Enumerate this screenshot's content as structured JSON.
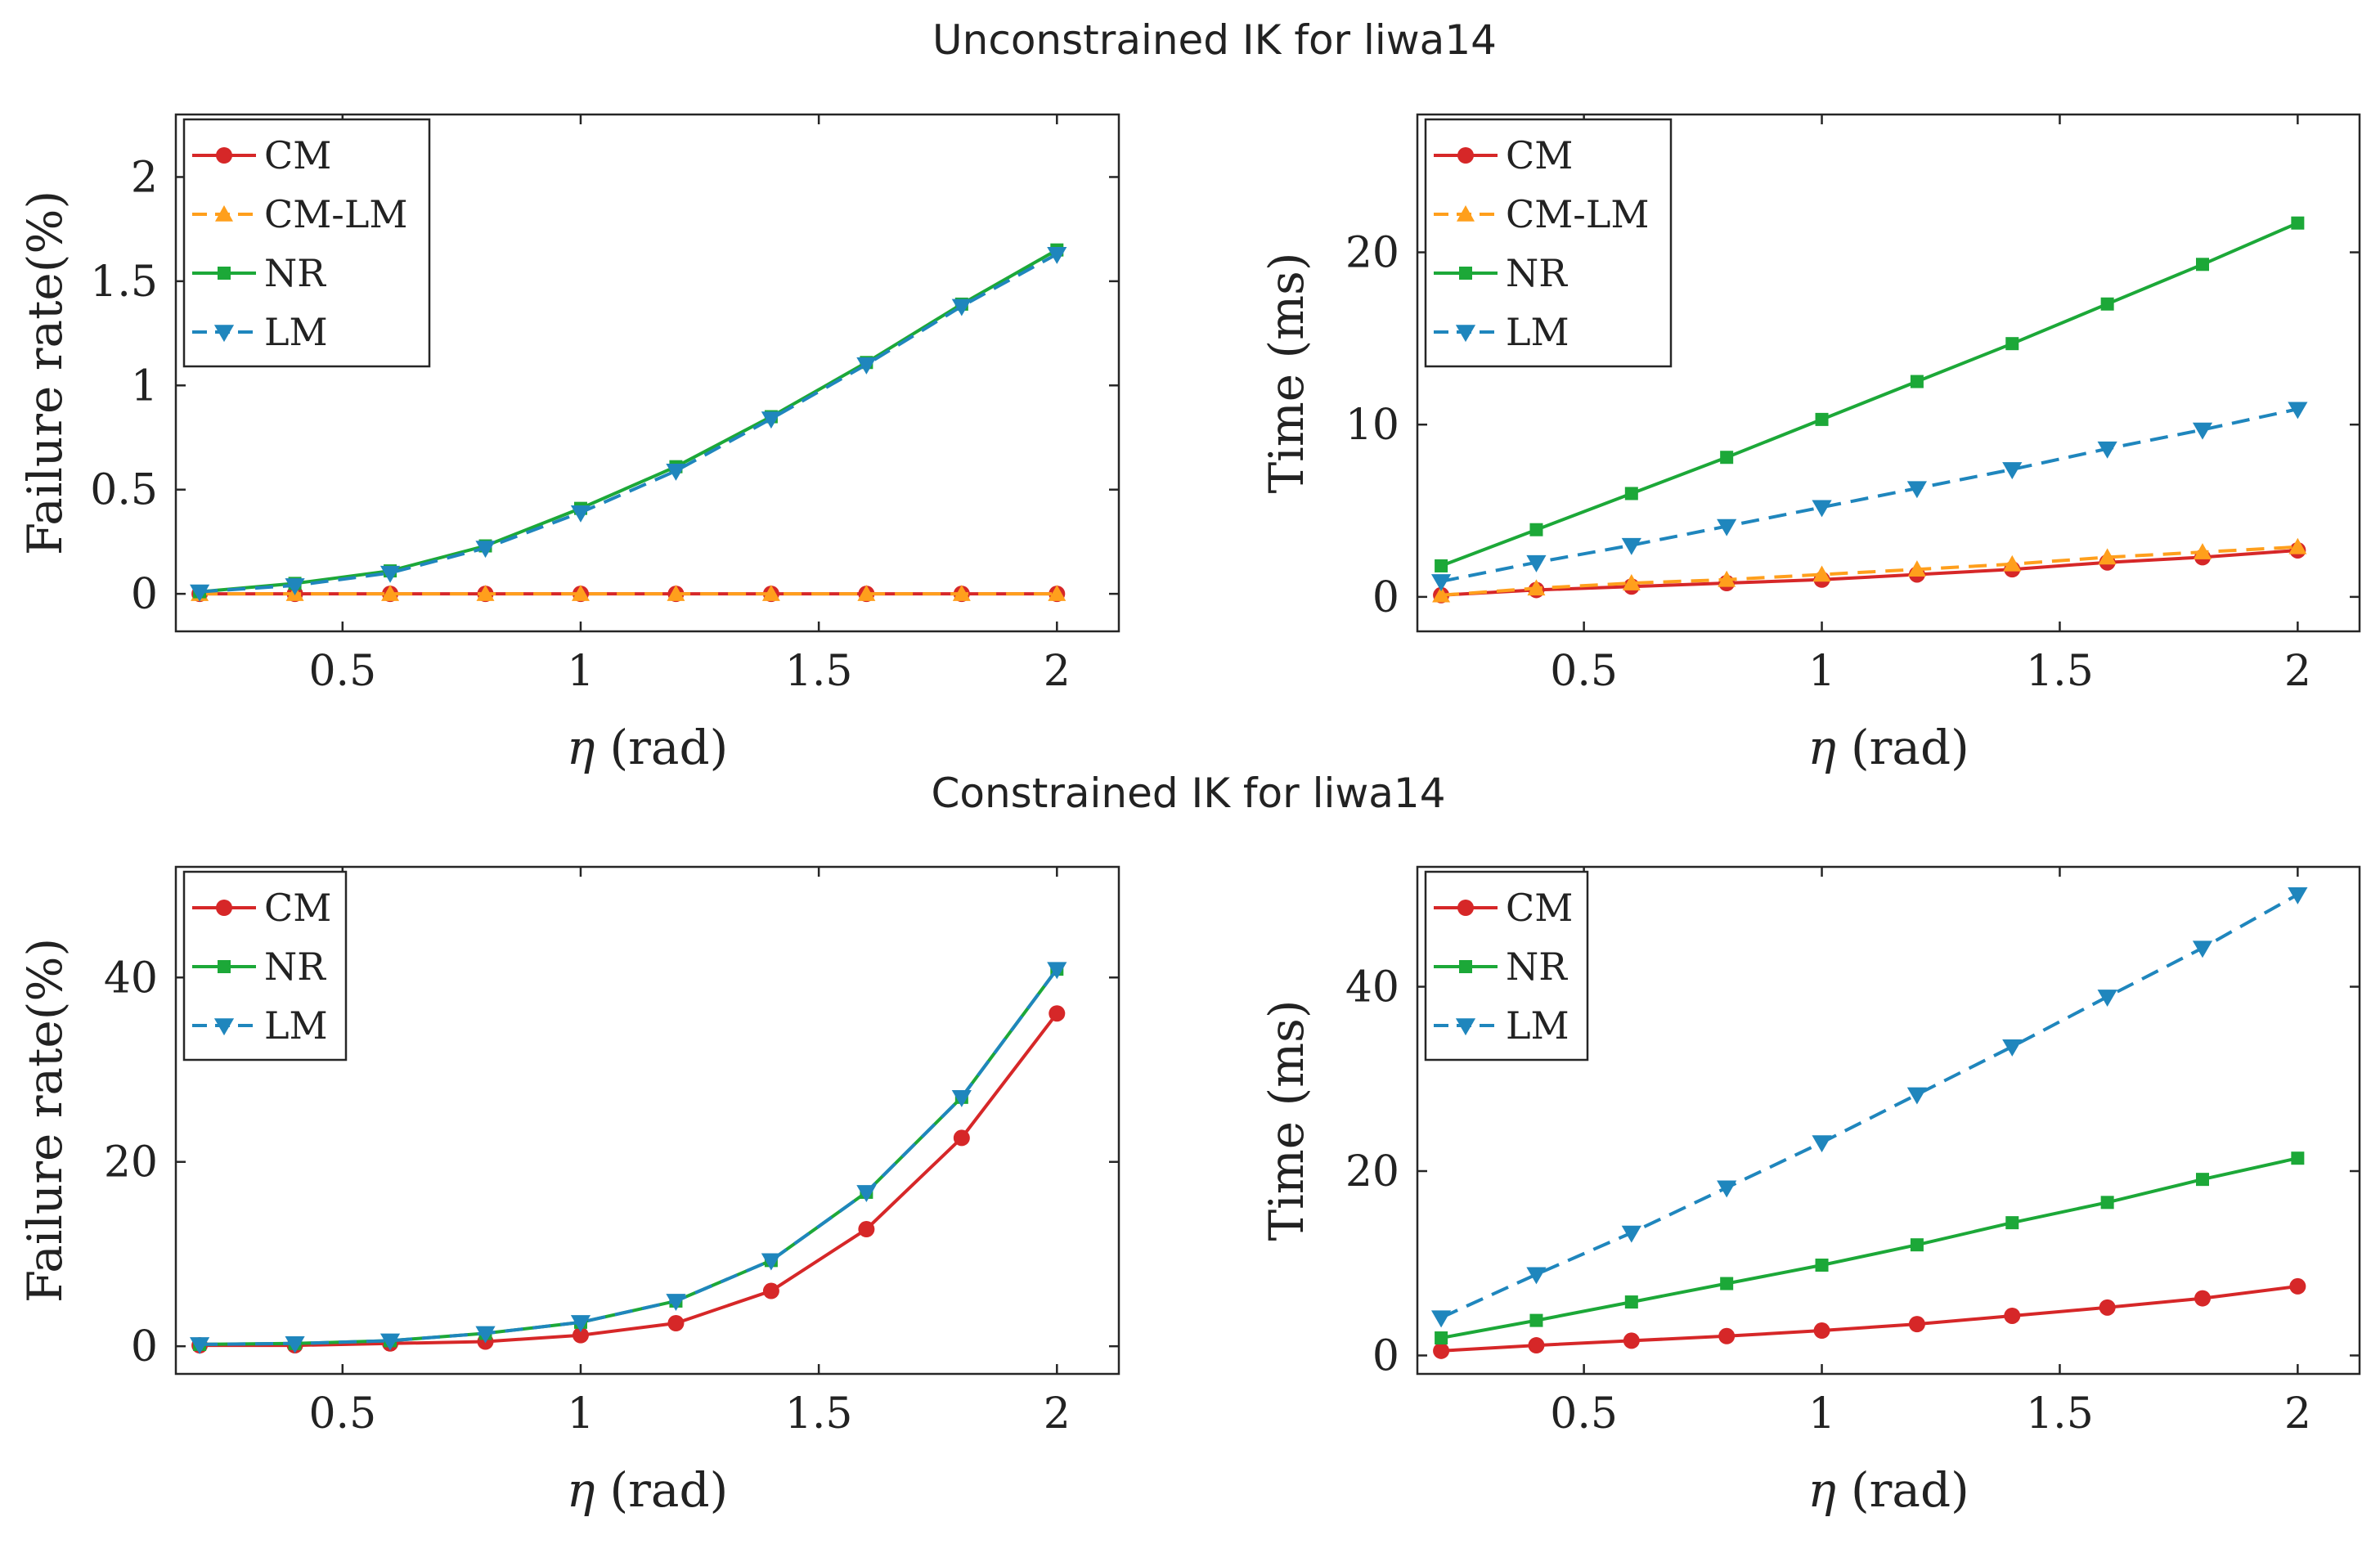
{
  "sections": [
    {
      "title": "Unconstrained IK for liwa14"
    },
    {
      "title": "Constrained IK for liwa14"
    }
  ],
  "colors": {
    "CM": "#d62728",
    "CM-LM": "#ff9f1c",
    "NR": "#1ca838",
    "LM": "#1f86bd"
  },
  "chart_data": [
    {
      "type": "line",
      "title": "Unconstrained IK for liwa14",
      "xlabel_symbol": "η",
      "xlabel_unit": "(rad)",
      "ylabel": "Failure rate(%)",
      "xlim": [
        0.15,
        2.13
      ],
      "ylim": [
        -0.18,
        2.3
      ],
      "xticks": [
        0.5,
        1,
        1.5,
        2
      ],
      "yticks": [
        0,
        0.5,
        1,
        1.5,
        2
      ],
      "x": [
        0.2,
        0.4,
        0.6,
        0.8,
        1.0,
        1.2,
        1.4,
        1.6,
        1.8,
        2.0
      ],
      "legend": [
        "CM",
        "CM-LM",
        "NR",
        "LM"
      ],
      "series": [
        {
          "name": "CM",
          "marker": "circle",
          "dash": false,
          "values": [
            0,
            0,
            0,
            0,
            0,
            0,
            0,
            0,
            0,
            0
          ]
        },
        {
          "name": "CM-LM",
          "marker": "triangle-up",
          "dash": true,
          "values": [
            0,
            0,
            0,
            0,
            0,
            0,
            0,
            0,
            0,
            0
          ]
        },
        {
          "name": "NR",
          "marker": "square",
          "dash": false,
          "values": [
            0.01,
            0.05,
            0.11,
            0.23,
            0.41,
            0.61,
            0.85,
            1.11,
            1.39,
            1.65
          ]
        },
        {
          "name": "LM",
          "marker": "triangle-down",
          "dash": true,
          "values": [
            0.01,
            0.04,
            0.1,
            0.22,
            0.39,
            0.59,
            0.84,
            1.1,
            1.38,
            1.63
          ]
        }
      ]
    },
    {
      "type": "line",
      "title": "Unconstrained IK for liwa14",
      "xlabel_symbol": "η",
      "xlabel_unit": "(rad)",
      "ylabel": "Time (ms)",
      "xlim": [
        0.15,
        2.13
      ],
      "ylim": [
        -2,
        28
      ],
      "xticks": [
        0.5,
        1,
        1.5,
        2
      ],
      "yticks": [
        0,
        10,
        20
      ],
      "x": [
        0.2,
        0.4,
        0.6,
        0.8,
        1.0,
        1.2,
        1.4,
        1.6,
        1.8,
        2.0
      ],
      "legend": [
        "CM",
        "CM-LM",
        "NR",
        "LM"
      ],
      "series": [
        {
          "name": "CM",
          "marker": "circle",
          "dash": false,
          "values": [
            0.1,
            0.4,
            0.6,
            0.8,
            1.0,
            1.3,
            1.6,
            2.0,
            2.3,
            2.7
          ]
        },
        {
          "name": "CM-LM",
          "marker": "triangle-up",
          "dash": true,
          "values": [
            0.1,
            0.5,
            0.8,
            1.0,
            1.3,
            1.6,
            1.9,
            2.3,
            2.6,
            2.9
          ]
        },
        {
          "name": "NR",
          "marker": "square",
          "dash": false,
          "values": [
            1.8,
            3.9,
            6.0,
            8.1,
            10.3,
            12.5,
            14.7,
            17.0,
            19.3,
            21.7
          ]
        },
        {
          "name": "LM",
          "marker": "triangle-down",
          "dash": true,
          "values": [
            0.9,
            2.0,
            3.0,
            4.1,
            5.2,
            6.3,
            7.4,
            8.6,
            9.7,
            10.9
          ]
        }
      ]
    },
    {
      "type": "line",
      "title": "Constrained IK for liwa14",
      "xlabel_symbol": "η",
      "xlabel_unit": "(rad)",
      "ylabel": "Failure rate(%)",
      "xlim": [
        0.15,
        2.13
      ],
      "ylim": [
        -3,
        52
      ],
      "xticks": [
        0.5,
        1,
        1.5,
        2
      ],
      "yticks": [
        0,
        20,
        40
      ],
      "x": [
        0.2,
        0.4,
        0.6,
        0.8,
        1.0,
        1.2,
        1.4,
        1.6,
        1.8,
        2.0
      ],
      "legend": [
        "CM",
        "NR",
        "LM"
      ],
      "series": [
        {
          "name": "CM",
          "marker": "circle",
          "dash": false,
          "values": [
            0.1,
            0.1,
            0.3,
            0.5,
            1.2,
            2.5,
            6.0,
            12.7,
            22.6,
            36.1
          ]
        },
        {
          "name": "NR",
          "marker": "square",
          "dash": false,
          "values": [
            0.2,
            0.3,
            0.6,
            1.4,
            2.6,
            4.9,
            9.3,
            16.7,
            27.0,
            40.9
          ]
        },
        {
          "name": "LM",
          "marker": "triangle-down",
          "dash": true,
          "values": [
            0.2,
            0.3,
            0.6,
            1.4,
            2.6,
            4.9,
            9.3,
            16.7,
            27.0,
            40.9
          ]
        }
      ]
    },
    {
      "type": "line",
      "title": "Constrained IK for liwa14",
      "xlabel_symbol": "η",
      "xlabel_unit": "(rad)",
      "ylabel": "Time (ms)",
      "xlim": [
        0.15,
        2.13
      ],
      "ylim": [
        -2,
        53
      ],
      "xticks": [
        0.5,
        1,
        1.5,
        2
      ],
      "yticks": [
        0,
        20,
        40
      ],
      "x": [
        0.2,
        0.4,
        0.6,
        0.8,
        1.0,
        1.2,
        1.4,
        1.6,
        1.8,
        2.0
      ],
      "legend": [
        "CM",
        "NR",
        "LM"
      ],
      "series": [
        {
          "name": "CM",
          "marker": "circle",
          "dash": false,
          "values": [
            0.5,
            1.1,
            1.6,
            2.1,
            2.7,
            3.4,
            4.3,
            5.2,
            6.2,
            7.5
          ]
        },
        {
          "name": "NR",
          "marker": "square",
          "dash": false,
          "values": [
            1.9,
            3.8,
            5.8,
            7.8,
            9.8,
            12.0,
            14.4,
            16.6,
            19.1,
            21.4
          ]
        },
        {
          "name": "LM",
          "marker": "triangle-down",
          "dash": true,
          "values": [
            4.1,
            8.8,
            13.3,
            18.2,
            23.1,
            28.3,
            33.5,
            38.9,
            44.2,
            50.0
          ]
        }
      ]
    }
  ]
}
